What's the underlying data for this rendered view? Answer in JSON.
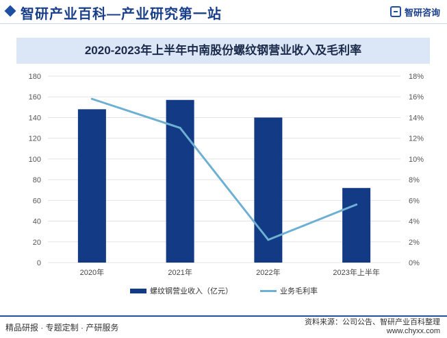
{
  "header": {
    "site_title": "智研产业百科—产业研究第一站",
    "logo_text": "智研咨询"
  },
  "footer": {
    "services": "精品研报 · 专题定制 · 产研服务",
    "source": "资料来源：公司公告、智研产业百科整理",
    "url": "www.chyxx.com"
  },
  "colors": {
    "bar": "#123a85",
    "line": "#6eb0d3",
    "title_band": "#dbe7f6"
  },
  "chart_data": {
    "type": "bar",
    "title": "2020-2023年上半年中南股份螺纹钢营业收入及毛利率",
    "categories": [
      "2020年",
      "2021年",
      "2022年",
      "2023年上半年"
    ],
    "series": [
      {
        "name": "螺纹钢营业收入（亿元）",
        "type": "bar",
        "axis": "left",
        "values": [
          148,
          157,
          140,
          72
        ]
      },
      {
        "name": "业务毛利率",
        "type": "line",
        "axis": "right",
        "values": [
          15.8,
          13.0,
          2.2,
          5.6
        ]
      }
    ],
    "y_left": {
      "min": 0,
      "max": 180,
      "step": 20,
      "ticks": [
        "0",
        "20",
        "40",
        "60",
        "80",
        "100",
        "120",
        "140",
        "160",
        "180"
      ]
    },
    "y_right": {
      "min": 0,
      "max": 18,
      "step": 2,
      "ticks": [
        "0%",
        "2%",
        "4%",
        "6%",
        "8%",
        "10%",
        "12%",
        "14%",
        "16%",
        "18%"
      ]
    },
    "grid": true,
    "legend_position": "bottom"
  }
}
